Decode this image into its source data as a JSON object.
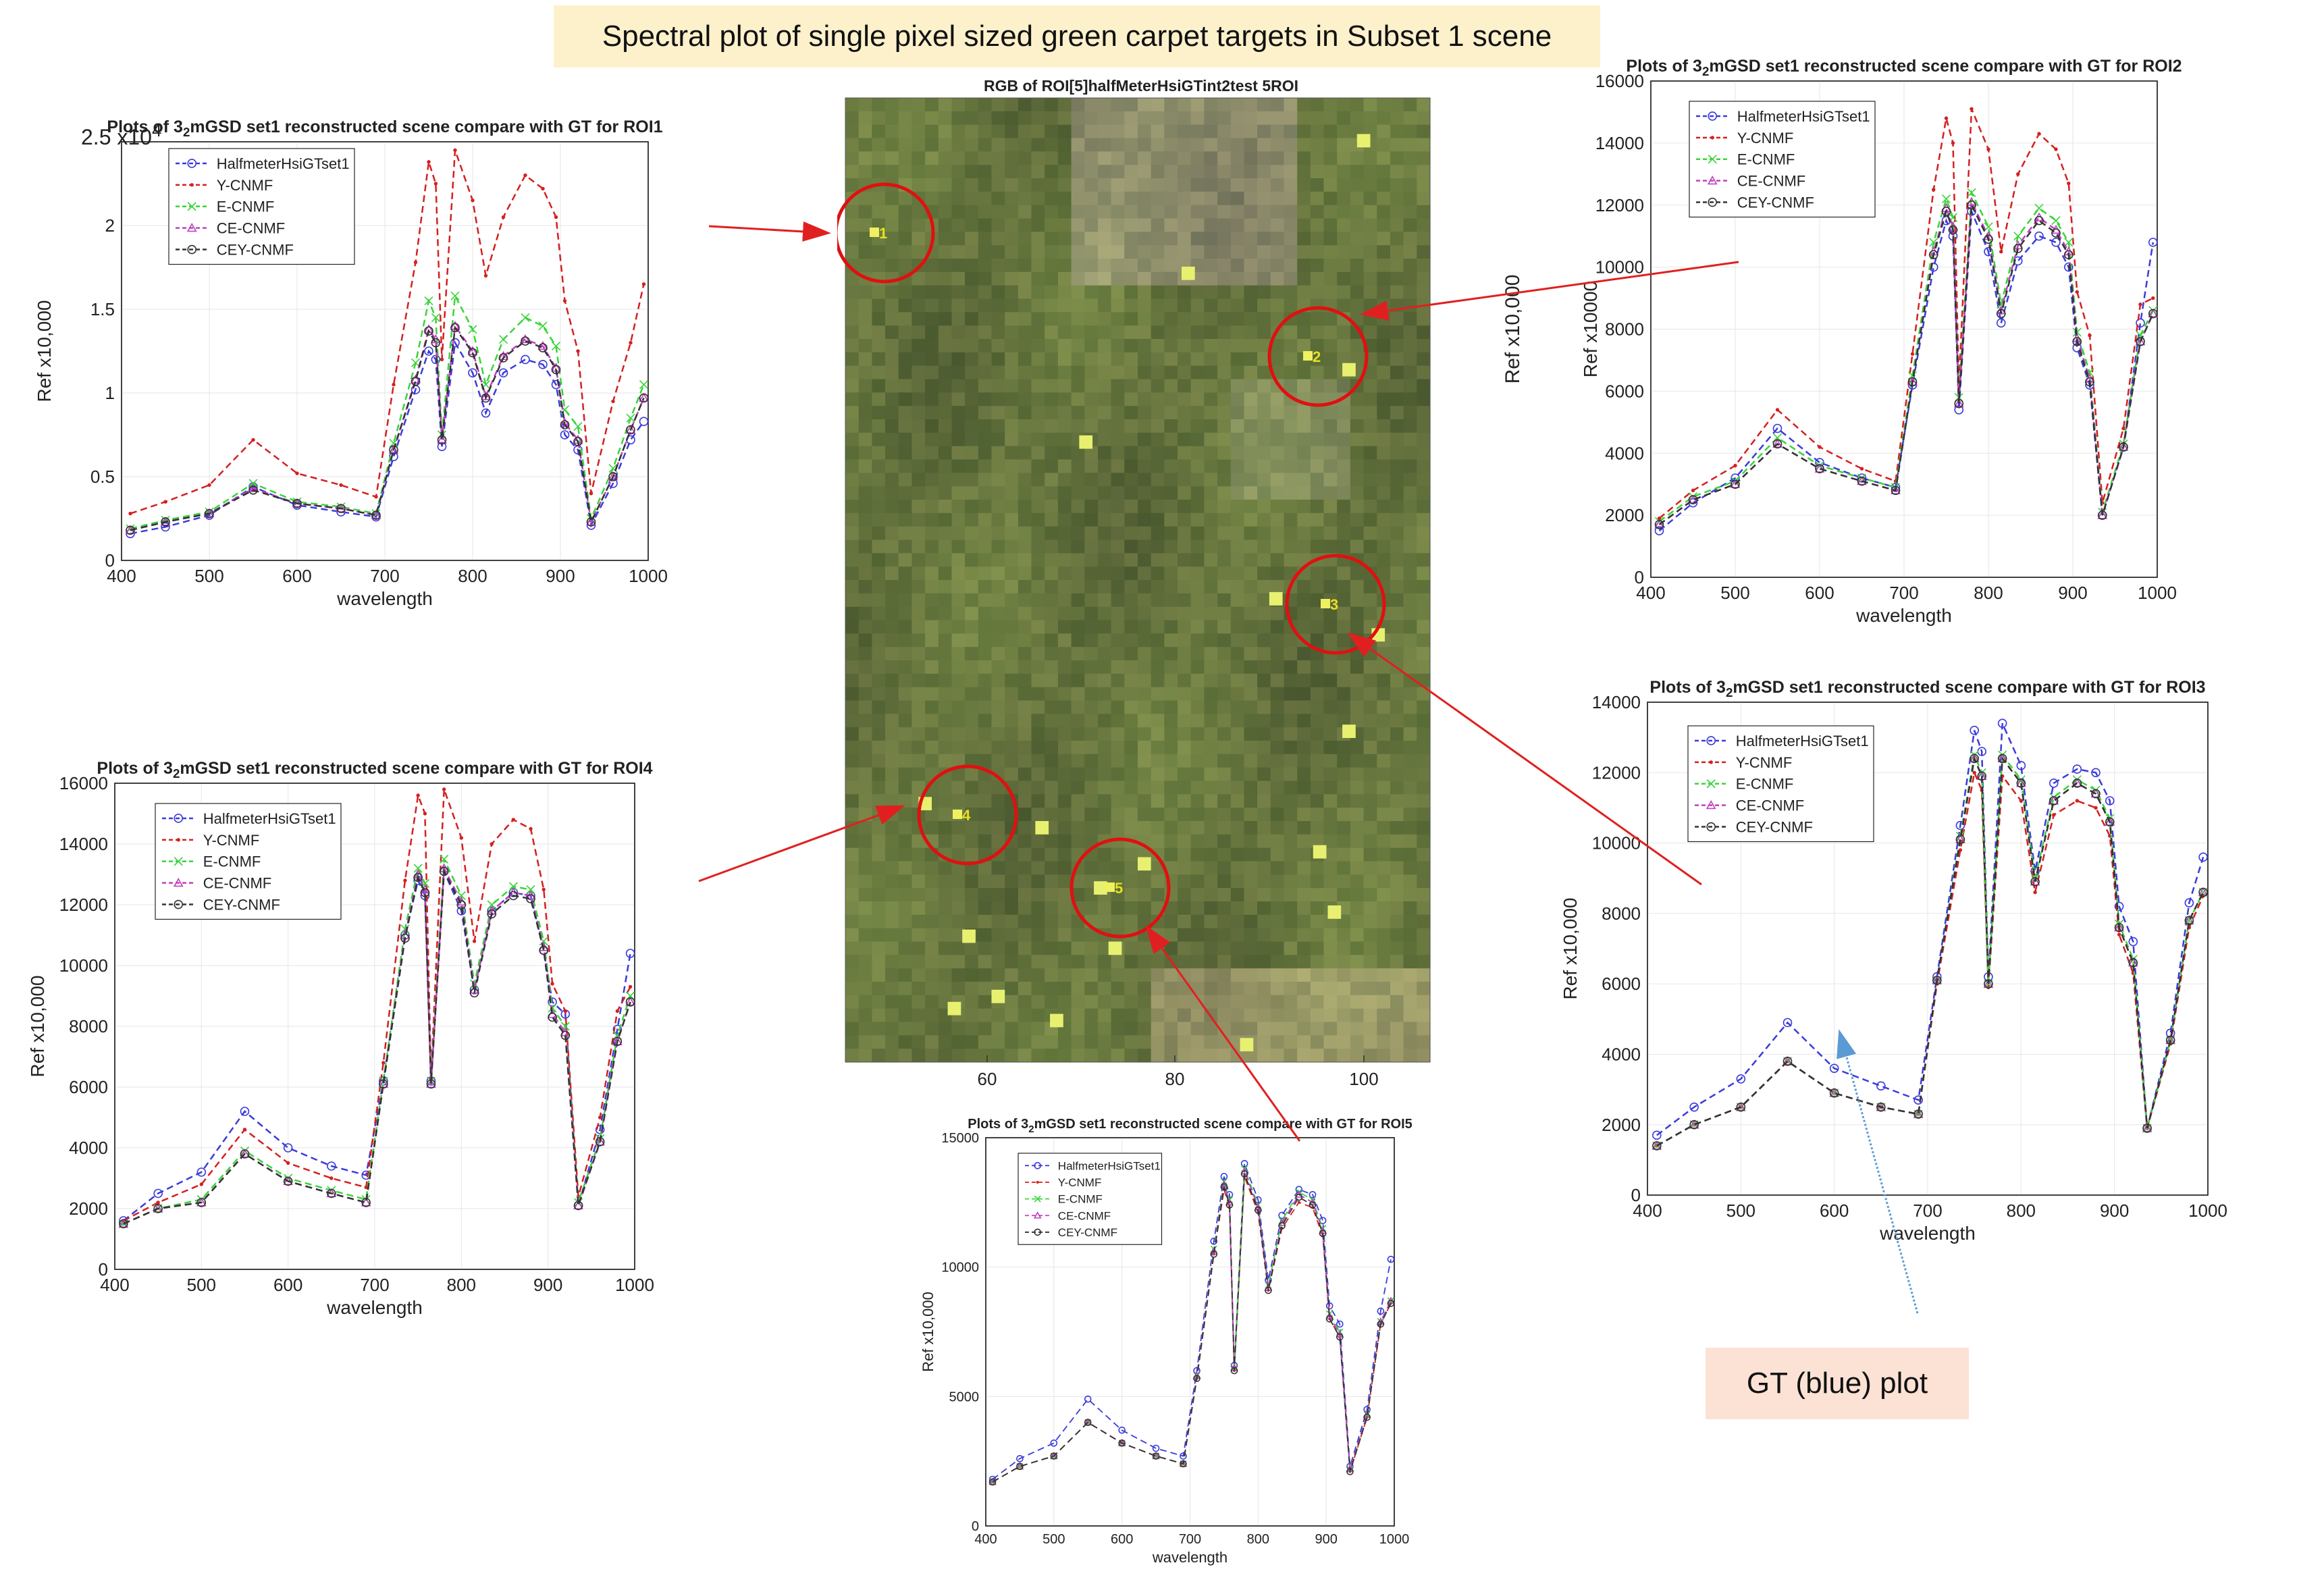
{
  "figure_title": "Spectral plot of single pixel sized green carpet targets in Subset 1 scene",
  "gt_callout": "GT (blue) plot",
  "image_panel": {
    "title": "RGB of ROI[5]halfMeterHsiGTint2test 5ROI",
    "xticks": [
      "60",
      "80",
      "100"
    ],
    "markers": [
      "1",
      "2",
      "3",
      "4",
      "5"
    ]
  },
  "colors": {
    "HalfmeterHsiGTset1": "#3b3bdc",
    "Y-CNMF": "#d42020",
    "E-CNMF": "#3ad43a",
    "CE-CNMF": "#c040c0",
    "CEY-CNMF": "#333333",
    "arrow_red": "#e02020",
    "arrow_blue": "#5b9bd5"
  },
  "chart_data": [
    {
      "id": "roi1",
      "type": "line",
      "title": "Plots of 3_2mGSD set1 reconstructed scene compare with GT for ROI1",
      "xlabel": "wavelength",
      "ylabel": "Ref x10,000",
      "exponent_label": "x10",
      "exponent_power": "4",
      "xlim": [
        400,
        1000
      ],
      "ylim": [
        0,
        2.5
      ],
      "xticks": [
        400,
        500,
        600,
        700,
        800,
        900,
        1000
      ],
      "yticks": [
        0,
        0.5,
        1,
        1.5,
        2
      ],
      "ytick_labels": [
        "0",
        "0.5",
        "1",
        "1.5",
        "2"
      ],
      "legend": [
        "HalfmeterHsiGTset1",
        "Y-CNMF",
        "E-CNMF",
        "CE-CNMF",
        "CEY-CNMF"
      ],
      "x": [
        410,
        450,
        500,
        550,
        600,
        650,
        690,
        710,
        735,
        750,
        758,
        765,
        780,
        800,
        815,
        835,
        860,
        880,
        895,
        905,
        920,
        935,
        960,
        980,
        995
      ],
      "series": [
        {
          "name": "HalfmeterHsiGTset1",
          "values": [
            0.16,
            0.2,
            0.27,
            0.44,
            0.33,
            0.29,
            0.26,
            0.62,
            1.02,
            1.25,
            1.2,
            0.68,
            1.3,
            1.12,
            0.88,
            1.12,
            1.2,
            1.17,
            1.05,
            0.75,
            0.66,
            0.21,
            0.46,
            0.72,
            0.83
          ]
        },
        {
          "name": "Y-CNMF",
          "values": [
            0.28,
            0.35,
            0.45,
            0.72,
            0.52,
            0.45,
            0.38,
            1.05,
            1.78,
            2.38,
            2.25,
            1.2,
            2.45,
            2.15,
            1.7,
            2.05,
            2.3,
            2.22,
            2.05,
            1.55,
            1.25,
            0.4,
            0.95,
            1.3,
            1.65
          ]
        },
        {
          "name": "E-CNMF",
          "values": [
            0.19,
            0.24,
            0.29,
            0.46,
            0.35,
            0.32,
            0.28,
            0.7,
            1.18,
            1.55,
            1.45,
            0.75,
            1.58,
            1.38,
            1.05,
            1.32,
            1.45,
            1.4,
            1.28,
            0.9,
            0.8,
            0.25,
            0.55,
            0.85,
            1.05
          ]
        },
        {
          "name": "CE-CNMF",
          "values": [
            0.18,
            0.23,
            0.28,
            0.43,
            0.34,
            0.31,
            0.27,
            0.66,
            1.08,
            1.38,
            1.32,
            0.72,
            1.4,
            1.25,
            0.98,
            1.22,
            1.32,
            1.28,
            1.15,
            0.82,
            0.72,
            0.23,
            0.5,
            0.78,
            0.97
          ]
        },
        {
          "name": "CEY-CNMF",
          "values": [
            0.18,
            0.23,
            0.28,
            0.42,
            0.34,
            0.31,
            0.27,
            0.66,
            1.07,
            1.37,
            1.3,
            0.72,
            1.39,
            1.24,
            0.97,
            1.21,
            1.31,
            1.27,
            1.14,
            0.81,
            0.71,
            0.23,
            0.5,
            0.78,
            0.97
          ]
        }
      ]
    },
    {
      "id": "roi2",
      "type": "line",
      "title": "Plots of 3_2mGSD set1 reconstructed scene compare with GT for ROI2",
      "xlabel": "wavelength",
      "ylabel": "Ref x10000",
      "outer_ylabel": "Ref x10,000",
      "xlim": [
        400,
        1000
      ],
      "ylim": [
        0,
        16000
      ],
      "xticks": [
        400,
        500,
        600,
        700,
        800,
        900,
        1000
      ],
      "yticks": [
        0,
        2000,
        4000,
        6000,
        8000,
        10000,
        12000,
        14000,
        16000
      ],
      "legend": [
        "HalfmeterHsiGTset1",
        "Y-CNMF",
        "E-CNMF",
        "CE-CNMF",
        "CEY-CNMF"
      ],
      "x": [
        410,
        450,
        500,
        550,
        600,
        650,
        690,
        710,
        735,
        750,
        758,
        765,
        780,
        800,
        815,
        835,
        860,
        880,
        895,
        905,
        920,
        935,
        960,
        980,
        995
      ],
      "series": [
        {
          "name": "HalfmeterHsiGTset1",
          "values": [
            1500,
            2400,
            3200,
            4800,
            3700,
            3200,
            2900,
            6200,
            10000,
            11500,
            11000,
            5400,
            11800,
            10500,
            8200,
            10200,
            11000,
            10800,
            10000,
            7400,
            6200,
            2000,
            4200,
            8200,
            10800
          ]
        },
        {
          "name": "Y-CNMF",
          "values": [
            1900,
            2800,
            3600,
            5400,
            4200,
            3500,
            3100,
            7200,
            12500,
            14800,
            14000,
            6200,
            15100,
            13800,
            10500,
            13000,
            14300,
            13800,
            12700,
            9200,
            7800,
            2400,
            4800,
            8800,
            9000
          ]
        },
        {
          "name": "E-CNMF",
          "values": [
            1800,
            2600,
            3100,
            4500,
            3600,
            3200,
            2900,
            6500,
            10800,
            12200,
            11600,
            5800,
            12400,
            11300,
            8800,
            11000,
            11900,
            11500,
            10800,
            7900,
            6600,
            2100,
            4300,
            7800,
            8600
          ]
        },
        {
          "name": "CE-CNMF",
          "values": [
            1700,
            2500,
            3000,
            4300,
            3500,
            3100,
            2800,
            6300,
            10500,
            11900,
            11300,
            5600,
            12100,
            11000,
            8600,
            10700,
            11600,
            11200,
            10500,
            7700,
            6400,
            2000,
            4200,
            7600,
            8500
          ]
        },
        {
          "name": "CEY-CNMF",
          "values": [
            1700,
            2500,
            3000,
            4300,
            3500,
            3100,
            2800,
            6300,
            10400,
            11800,
            11200,
            5600,
            12000,
            10900,
            8500,
            10600,
            11500,
            11100,
            10400,
            7600,
            6300,
            2000,
            4200,
            7600,
            8500
          ]
        }
      ]
    },
    {
      "id": "roi3",
      "type": "line",
      "title": "Plots of 3_2mGSD set1 reconstructed scene compare with GT for ROI3",
      "xlabel": "wavelength",
      "ylabel": "Ref x10,000",
      "xlim": [
        400,
        1000
      ],
      "ylim": [
        0,
        14000
      ],
      "xticks": [
        400,
        500,
        600,
        700,
        800,
        900,
        1000
      ],
      "yticks": [
        0,
        2000,
        4000,
        6000,
        8000,
        10000,
        12000,
        14000
      ],
      "legend": [
        "HalfmeterHsiGTset1",
        "Y-CNMF",
        "E-CNMF",
        "CE-CNMF",
        "CEY-CNMF"
      ],
      "x": [
        410,
        450,
        500,
        550,
        600,
        650,
        690,
        710,
        735,
        750,
        758,
        765,
        780,
        800,
        815,
        835,
        860,
        880,
        895,
        905,
        920,
        935,
        960,
        980,
        995
      ],
      "series": [
        {
          "name": "HalfmeterHsiGTset1",
          "values": [
            1700,
            2500,
            3300,
            4900,
            3600,
            3100,
            2700,
            6200,
            10500,
            13200,
            12600,
            6200,
            13400,
            12200,
            9200,
            11700,
            12100,
            12000,
            11200,
            8200,
            7200,
            1900,
            4600,
            8300,
            9600
          ]
        },
        {
          "name": "Y-CNMF",
          "values": [
            1400,
            2000,
            2500,
            3800,
            2900,
            2500,
            2300,
            6000,
            9800,
            12000,
            11500,
            5900,
            11900,
            11200,
            8600,
            10800,
            11200,
            11000,
            10200,
            7400,
            6300,
            1900,
            4300,
            7600,
            8500
          ]
        },
        {
          "name": "E-CNMF",
          "values": [
            1400,
            2000,
            2500,
            3800,
            2900,
            2500,
            2300,
            6100,
            10200,
            12500,
            12000,
            6000,
            12500,
            11800,
            9000,
            11300,
            11800,
            11500,
            10700,
            7700,
            6700,
            1900,
            4400,
            7800,
            8600
          ]
        },
        {
          "name": "CE-CNMF",
          "values": [
            1400,
            2000,
            2500,
            3800,
            2900,
            2500,
            2300,
            6100,
            10100,
            12400,
            11900,
            6000,
            12400,
            11700,
            8900,
            11200,
            11700,
            11400,
            10600,
            7600,
            6600,
            1900,
            4400,
            7800,
            8600
          ]
        },
        {
          "name": "CEY-CNMF",
          "values": [
            1400,
            2000,
            2500,
            3800,
            2900,
            2500,
            2300,
            6100,
            10100,
            12400,
            11900,
            6000,
            12400,
            11700,
            8900,
            11200,
            11700,
            11400,
            10600,
            7600,
            6600,
            1900,
            4400,
            7800,
            8600
          ]
        }
      ]
    },
    {
      "id": "roi4",
      "type": "line",
      "title": "Plots of 3_2mGSD set1 reconstructed scene compare with GT for ROI4",
      "xlabel": "wavelength",
      "ylabel": "Ref x10,000",
      "xlim": [
        400,
        1000
      ],
      "ylim": [
        0,
        16000
      ],
      "xticks": [
        400,
        500,
        600,
        700,
        800,
        900,
        1000
      ],
      "yticks": [
        0,
        2000,
        4000,
        6000,
        8000,
        10000,
        12000,
        14000,
        16000
      ],
      "legend": [
        "HalfmeterHsiGTset1",
        "Y-CNMF",
        "E-CNMF",
        "CE-CNMF",
        "CEY-CNMF"
      ],
      "x": [
        410,
        450,
        500,
        550,
        600,
        650,
        690,
        710,
        735,
        750,
        758,
        765,
        780,
        800,
        815,
        835,
        860,
        880,
        895,
        905,
        920,
        935,
        960,
        980,
        995
      ],
      "series": [
        {
          "name": "HalfmeterHsiGTset1",
          "values": [
            1600,
            2500,
            3200,
            5200,
            4000,
            3400,
            3100,
            6200,
            11000,
            12800,
            12300,
            6200,
            13100,
            11800,
            9200,
            11800,
            12400,
            12300,
            10500,
            8800,
            8400,
            2100,
            4600,
            7900,
            10400
          ]
        },
        {
          "name": "Y-CNMF",
          "values": [
            1600,
            2200,
            2800,
            4600,
            3500,
            3000,
            2700,
            6800,
            12800,
            15600,
            15000,
            6300,
            15800,
            14200,
            10800,
            14000,
            14800,
            14500,
            12500,
            9400,
            8500,
            2400,
            5000,
            8500,
            9300
          ]
        },
        {
          "name": "E-CNMF",
          "values": [
            1500,
            2000,
            2300,
            3900,
            3000,
            2600,
            2300,
            6200,
            11200,
            13200,
            12700,
            6200,
            13500,
            12300,
            9400,
            12000,
            12600,
            12500,
            10800,
            8600,
            8000,
            2200,
            4300,
            7700,
            9000
          ]
        },
        {
          "name": "CE-CNMF",
          "values": [
            1500,
            2000,
            2200,
            3800,
            2900,
            2500,
            2200,
            6100,
            11000,
            13000,
            12500,
            6100,
            13200,
            12100,
            9200,
            11800,
            12400,
            12300,
            10600,
            8400,
            7800,
            2100,
            4200,
            7500,
            8800
          ]
        },
        {
          "name": "CEY-CNMF",
          "values": [
            1500,
            2000,
            2200,
            3800,
            2900,
            2500,
            2200,
            6100,
            10900,
            12900,
            12400,
            6100,
            13100,
            12000,
            9100,
            11700,
            12300,
            12200,
            10500,
            8300,
            7700,
            2100,
            4200,
            7500,
            8800
          ]
        }
      ]
    },
    {
      "id": "roi5",
      "type": "line",
      "title": "Plots of 3_2mGSD set1 reconstructed scene compare with GT for ROI5",
      "xlabel": "wavelength",
      "ylabel": "Ref x10,000",
      "xlim": [
        400,
        1000
      ],
      "ylim": [
        0,
        15000
      ],
      "xticks": [
        400,
        500,
        600,
        700,
        800,
        900,
        1000
      ],
      "yticks": [
        0,
        5000,
        10000,
        15000
      ],
      "ytick_labels": [
        "0",
        "5000",
        "10000",
        "15000"
      ],
      "legend": [
        "HalfmeterHsiGTset1",
        "Y-CNMF",
        "E-CNMF",
        "CE-CNMF",
        "CEY-CNMF"
      ],
      "x": [
        410,
        450,
        500,
        550,
        600,
        650,
        690,
        710,
        735,
        750,
        758,
        765,
        780,
        800,
        815,
        835,
        860,
        880,
        895,
        905,
        920,
        935,
        960,
        980,
        995
      ],
      "series": [
        {
          "name": "HalfmeterHsiGTset1",
          "values": [
            1800,
            2600,
            3200,
            4900,
            3700,
            3000,
            2700,
            6000,
            11000,
            13500,
            12800,
            6200,
            14000,
            12600,
            9500,
            12000,
            13000,
            12800,
            11800,
            8500,
            7800,
            2300,
            4500,
            8300,
            10300
          ]
        },
        {
          "name": "Y-CNMF",
          "values": [
            1700,
            2300,
            2700,
            4000,
            3200,
            2700,
            2400,
            5700,
            10500,
            13000,
            12300,
            6000,
            13500,
            12100,
            9100,
            11500,
            12500,
            12300,
            11200,
            8000,
            7300,
            2100,
            4200,
            7800,
            8600
          ]
        },
        {
          "name": "E-CNMF",
          "values": [
            1700,
            2300,
            2700,
            4000,
            3200,
            2700,
            2400,
            5800,
            10700,
            13300,
            12600,
            6100,
            13800,
            12400,
            9300,
            11800,
            12900,
            12600,
            11500,
            8200,
            7500,
            2200,
            4300,
            7900,
            8700
          ]
        },
        {
          "name": "CE-CNMF",
          "values": [
            1700,
            2300,
            2700,
            4000,
            3200,
            2700,
            2400,
            5800,
            10600,
            13200,
            12500,
            6100,
            13700,
            12300,
            9200,
            11700,
            12800,
            12500,
            11400,
            8100,
            7400,
            2200,
            4300,
            7900,
            8700
          ]
        },
        {
          "name": "CEY-CNMF",
          "values": [
            1700,
            2300,
            2700,
            4000,
            3200,
            2700,
            2400,
            5700,
            10500,
            13100,
            12400,
            6000,
            13600,
            12200,
            9100,
            11600,
            12700,
            12400,
            11300,
            8000,
            7300,
            2100,
            4200,
            7800,
            8600
          ]
        }
      ]
    }
  ]
}
